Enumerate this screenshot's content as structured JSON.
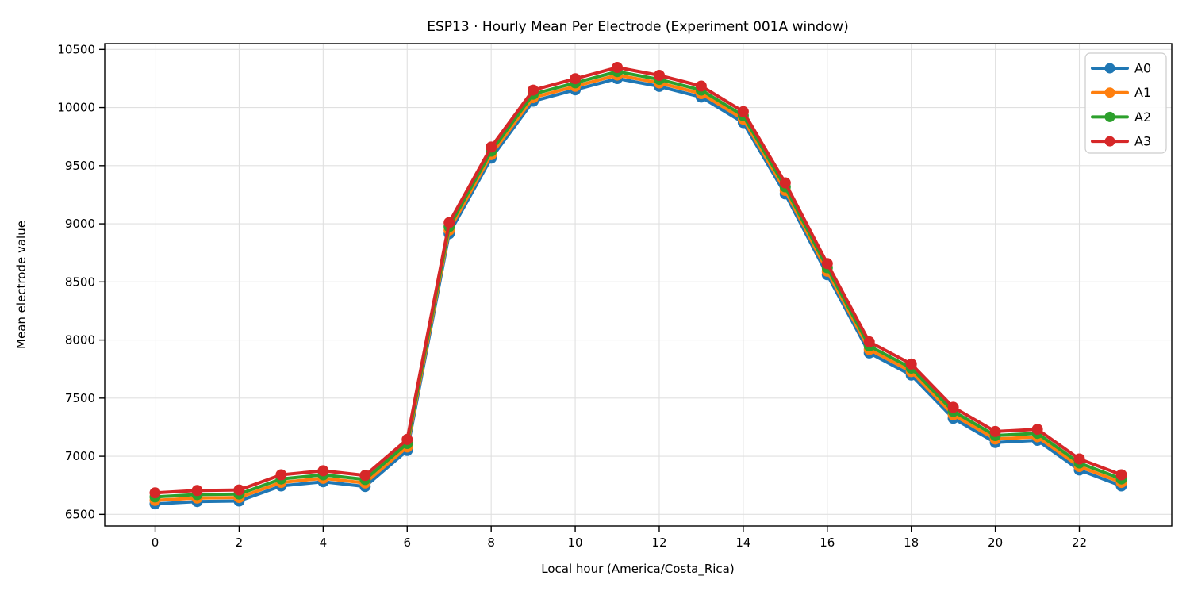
{
  "chart_data": {
    "type": "line",
    "title": "ESP13 · Hourly Mean Per Electrode (Experiment 001A window)",
    "xlabel": "Local hour (America/Costa_Rica)",
    "ylabel": "Mean electrode value",
    "x": [
      0,
      1,
      2,
      3,
      4,
      5,
      6,
      7,
      8,
      9,
      10,
      11,
      12,
      13,
      14,
      15,
      16,
      17,
      18,
      19,
      20,
      21,
      22,
      23
    ],
    "series": [
      {
        "name": "A0",
        "color": "#1f77b4",
        "values": [
          6590,
          6610,
          6615,
          6745,
          6780,
          6740,
          7050,
          8915,
          9565,
          10055,
          10153,
          10250,
          10182,
          10090,
          9870,
          9257,
          8562,
          7889,
          7698,
          7326,
          7118,
          7137,
          6882,
          6745
        ]
      },
      {
        "name": "A1",
        "color": "#ff7f0e",
        "values": [
          6620,
          6640,
          6645,
          6775,
          6810,
          6770,
          7080,
          8945,
          9595,
          10085,
          10183,
          10280,
          10212,
          10120,
          9900,
          9287,
          8592,
          7919,
          7728,
          7356,
          7148,
          7167,
          6912,
          6775
        ]
      },
      {
        "name": "A2",
        "color": "#2ca02c",
        "values": [
          6650,
          6670,
          6675,
          6805,
          6840,
          6800,
          7110,
          8975,
          9625,
          10115,
          10213,
          10310,
          10242,
          10150,
          9930,
          9317,
          8622,
          7949,
          7758,
          7386,
          7178,
          7197,
          6942,
          6805
        ]
      },
      {
        "name": "A3",
        "color": "#d62728",
        "values": [
          6685,
          6705,
          6710,
          6840,
          6875,
          6835,
          7145,
          9010,
          9660,
          10150,
          10248,
          10345,
          10277,
          10185,
          9965,
          9352,
          8657,
          7984,
          7793,
          7421,
          7213,
          7232,
          6977,
          6840
        ]
      }
    ],
    "xlim": [
      -1.2,
      24.2
    ],
    "ylim": [
      6400,
      10550
    ],
    "xticks": [
      0,
      2,
      4,
      6,
      8,
      10,
      12,
      14,
      16,
      18,
      20,
      22
    ],
    "yticks": [
      6500,
      7000,
      7500,
      8000,
      8500,
      9000,
      9500,
      10000,
      10500
    ],
    "grid": true,
    "legend": {
      "position": "upper right",
      "labels": [
        "A0",
        "A1",
        "A2",
        "A3"
      ]
    },
    "style": {
      "grid_color": "#e0e0e0",
      "spine_color": "#000000",
      "tick_color": "#000000",
      "legend_border_color": "#cccccc",
      "legend_bg_color": "#ffffff"
    }
  }
}
